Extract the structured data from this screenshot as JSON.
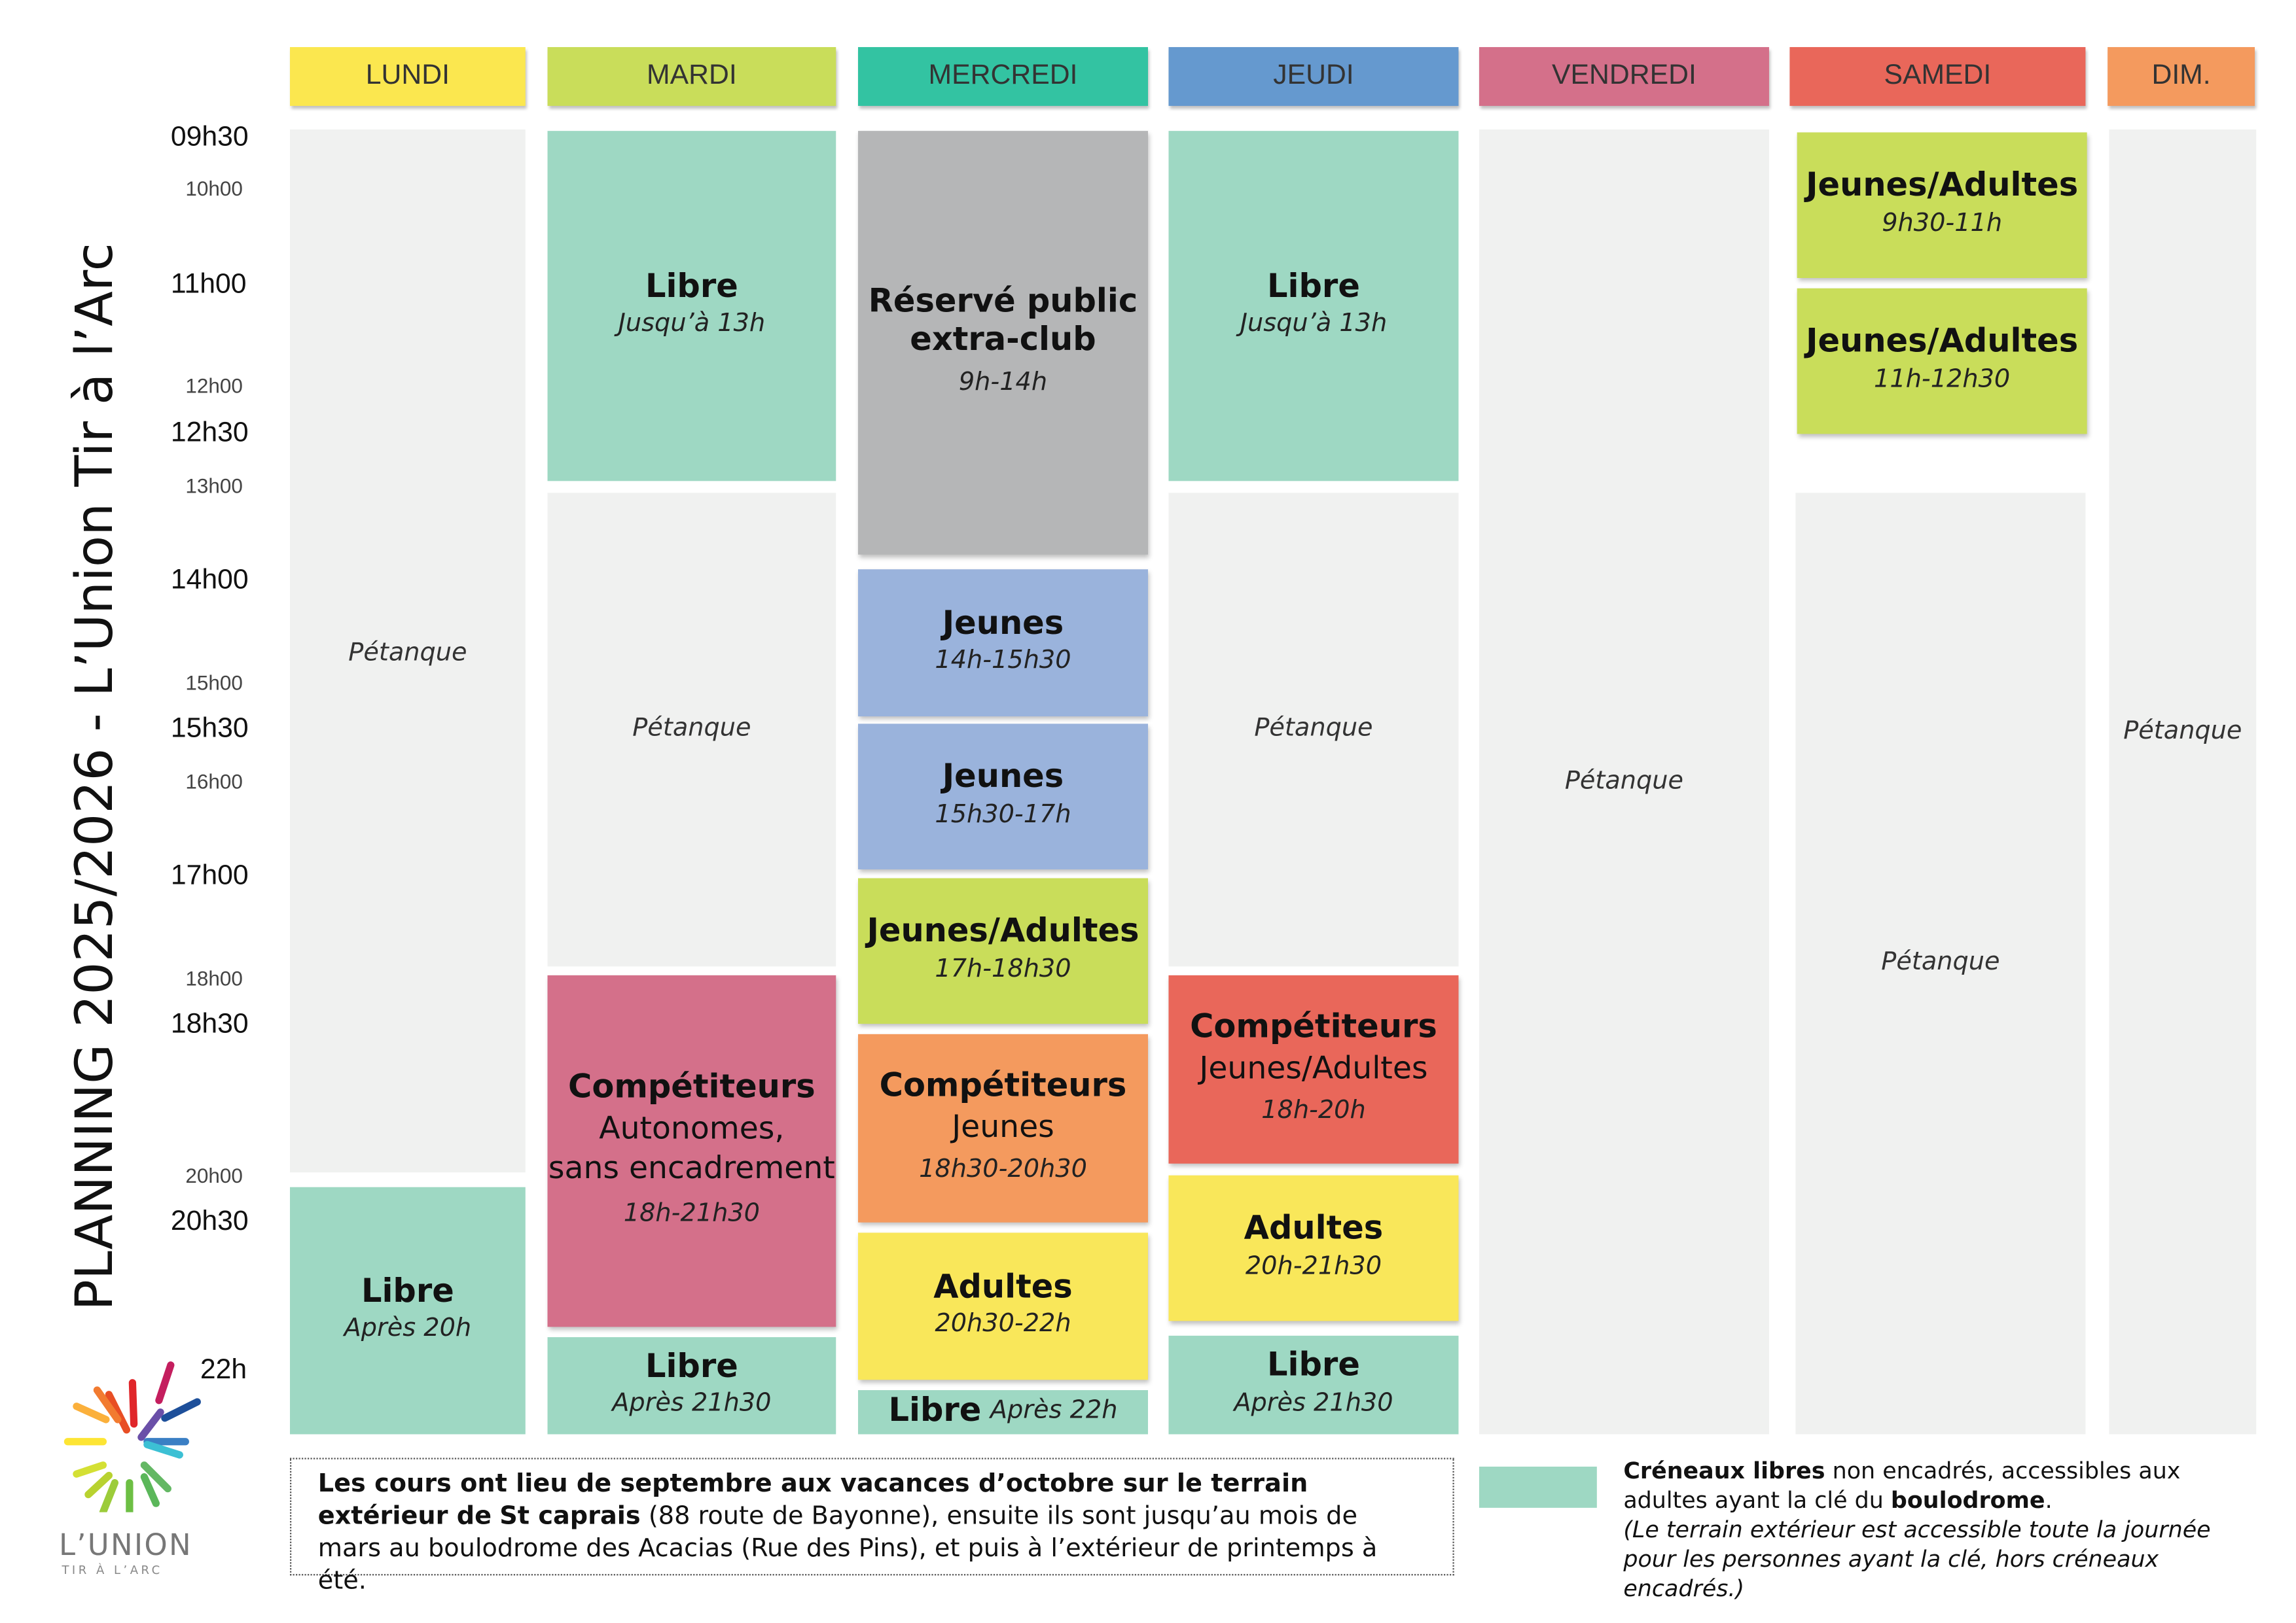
{
  "title": "PLANNING 2025/2026 - L’Union Tir à l’Arc",
  "logo": {
    "name": "L’UNION",
    "tagline": "TIR À L’ARC"
  },
  "days": [
    "LUNDI",
    "MARDI",
    "MERCREDI",
    "JEUDI",
    "VENDREDI",
    "SAMEDI",
    "DIM."
  ],
  "day_colors": [
    "#fbe74f",
    "#c9dd5a",
    "#33c3a2",
    "#6599cf",
    "#d4708a",
    "#e9675a",
    "#f49a5e"
  ],
  "times_major": [
    "09h30",
    "11h00",
    "12h30",
    "14h00",
    "15h30",
    "17h00",
    "18h30",
    "20h30",
    "22h"
  ],
  "times_minor": [
    "10h00",
    "12h00",
    "13h00",
    "15h00",
    "16h00",
    "18h00",
    "20h00"
  ],
  "lundi": [
    {
      "label": "Pétanque"
    },
    {
      "title": "Libre",
      "time": "Après 20h"
    }
  ],
  "mardi": [
    {
      "title": "Libre",
      "time": "Jusqu’à 13h"
    },
    {
      "label": "Pétanque"
    },
    {
      "title": "Compétiteurs",
      "sub1": "Autonomes,",
      "sub2": "sans encadrement",
      "time": "18h-21h30"
    },
    {
      "title": "Libre",
      "time": "Après 21h30"
    }
  ],
  "mercredi": [
    {
      "title1": "Réservé public",
      "title2": "extra-club",
      "time": "9h-14h"
    },
    {
      "title": "Jeunes",
      "time": "14h-15h30"
    },
    {
      "title": "Jeunes",
      "time": "15h30-17h"
    },
    {
      "title": "Jeunes/Adultes",
      "time": "17h-18h30"
    },
    {
      "title": "Compétiteurs",
      "sub": "Jeunes",
      "time": "18h30-20h30"
    },
    {
      "title": "Adultes",
      "time": "20h30-22h"
    },
    {
      "title": "Libre",
      "time": "Après 22h"
    }
  ],
  "jeudi": [
    {
      "title": "Libre",
      "time": "Jusqu’à 13h"
    },
    {
      "label": "Pétanque"
    },
    {
      "title": "Compétiteurs",
      "sub": "Jeunes/Adultes",
      "time": "18h-20h"
    },
    {
      "title": "Adultes",
      "time": "20h-21h30"
    },
    {
      "title": "Libre",
      "time": "Après 21h30"
    }
  ],
  "vendredi": [
    {
      "label": "Pétanque"
    }
  ],
  "samedi": [
    {
      "title": "Jeunes/Adultes",
      "time": "9h30-11h"
    },
    {
      "title": "Jeunes/Adultes",
      "time": "11h-12h30"
    },
    {
      "label": "Pétanque"
    }
  ],
  "dimanche": [
    {
      "label": "Pétanque"
    }
  ],
  "footer": {
    "p1": "Les cours ont lieu de septembre aux vacances d’octobre sur le terrain extérieur de",
    "p2": "St caprais",
    "p3": " (88 route de Bayonne), ensuite ils sont jusqu’au mois de mars au boulodrome des Acacias (Rue des Pins), et puis à l’extérieur de printemps à été."
  },
  "legend": {
    "b1": "Créneaux libres",
    "t1": " non encadrés, accessibles aux adultes ayant la clé du ",
    "b2": "boulodrome",
    "t2": ".",
    "note": "(Le terrain extérieur est accessible toute la journée pour les personnes ayant la clé, hors créneaux encadrés.)"
  }
}
